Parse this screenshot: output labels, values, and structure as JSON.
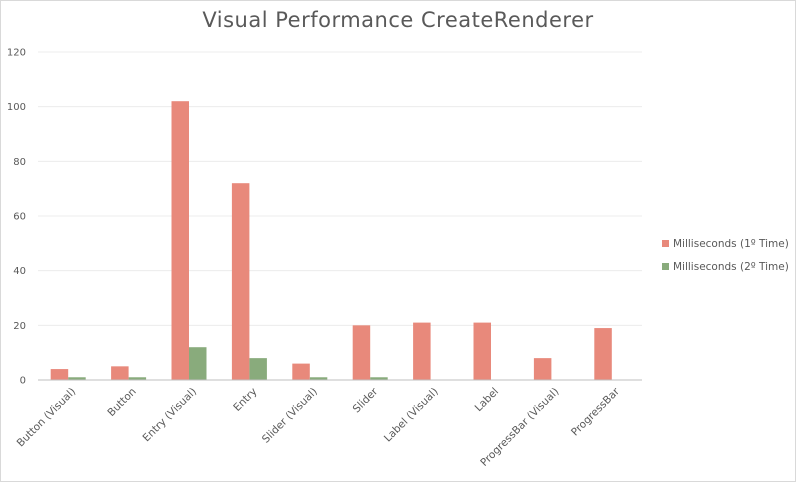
{
  "chart_data": {
    "type": "bar",
    "title": "Visual Performance CreateRenderer",
    "xlabel": "",
    "ylabel": "",
    "ylim": [
      0,
      120
    ],
    "yticks": [
      0,
      20,
      40,
      60,
      80,
      100,
      120
    ],
    "grid": true,
    "legend_position": "right",
    "categories": [
      "Button (Visual)",
      "Button",
      "Entry (Visual)",
      "Entry",
      "Slider (Visual)",
      "Slider",
      "Label (Visual)",
      "Label",
      "ProgressBar (Visual)",
      "ProgressBar"
    ],
    "series": [
      {
        "name": "Milliseconds (1º Time)",
        "color": "#e8897b",
        "values": [
          4,
          5,
          102,
          72,
          6,
          20,
          21,
          21,
          8,
          19
        ]
      },
      {
        "name": "Milliseconds (2º Time)",
        "color": "#89ab7c",
        "values": [
          1,
          1,
          12,
          8,
          1,
          1,
          0,
          0,
          0,
          0
        ]
      }
    ]
  }
}
